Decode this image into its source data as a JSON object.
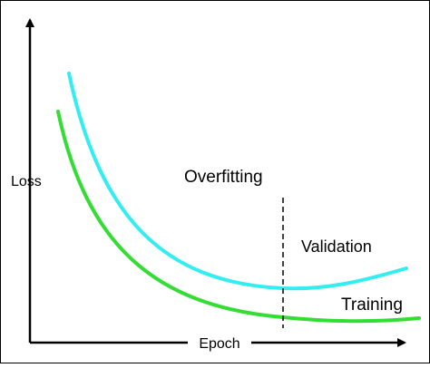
{
  "labels": {
    "y_axis": "Loss",
    "x_axis": "Epoch",
    "overfitting": "Overfitting",
    "validation": "Validation",
    "training": "Training"
  },
  "colors": {
    "validation_curve": "#33eef0",
    "training_curve": "#33dd33",
    "axes": "#000000",
    "divider": "#000000",
    "frame": "#000000",
    "background": "#ffffff"
  }
}
